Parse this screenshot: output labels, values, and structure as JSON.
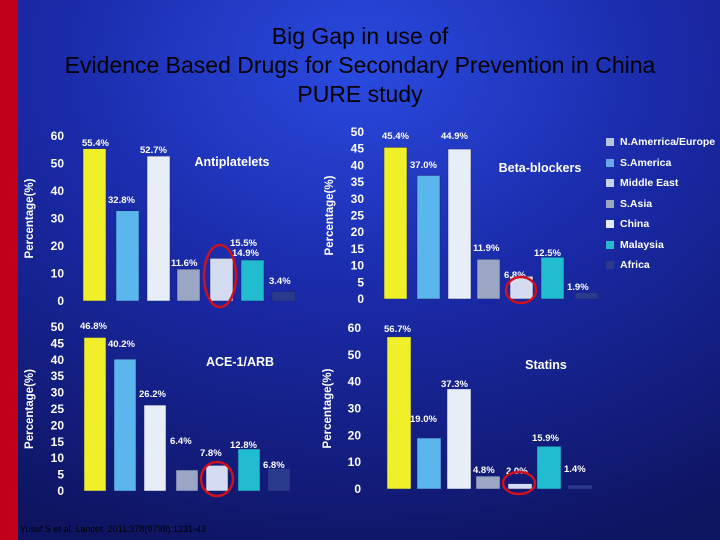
{
  "title": {
    "line1": "Big Gap in use of",
    "line2": "Evidence Based Drugs for Secondary Prevention in China",
    "line3": "PURE study"
  },
  "legend": [
    {
      "label": "N.Amerrica/Europe",
      "color": "#b8c4dc"
    },
    {
      "label": "S.America",
      "color": "#6aa6e8"
    },
    {
      "label": "Middle East",
      "color": "#c8d2ee"
    },
    {
      "label": "S.Asia",
      "color": "#9aa6c4"
    },
    {
      "label": "China",
      "color": "#e6ecf6"
    },
    {
      "label": "Malaysia",
      "color": "#2cb8cc"
    },
    {
      "label": "Africa",
      "color": "#2a3a8c"
    }
  ],
  "colors": {
    "background": "#11186a",
    "gradient_light": "#2a4ae0",
    "accent_bar": "#c0001a",
    "title_text": "#000000",
    "label_text": "#ffffff",
    "highlight_circle": "#d0101c",
    "bar_yellow": "#f0f02a",
    "bar_lightblue": "#5ab6ec",
    "bar_white": "#e8eef8",
    "bar_slate": "#9aa6c4",
    "bar_lavender": "#d4dcf2",
    "bar_cyan": "#22bcd0",
    "bar_navy": "#2a3a8c"
  },
  "chart_data": [
    {
      "type": "bar",
      "title": "Antiplatelets",
      "ylabel": "Percentage(%)",
      "ylim": [
        0,
        60
      ],
      "yticks": [
        "0",
        "10",
        "20",
        "30",
        "40",
        "50",
        "60"
      ],
      "categories": [
        "N.Amerrica/Europe",
        "S.America",
        "Middle East",
        "S.Asia",
        "China",
        "Malaysia",
        "Africa"
      ],
      "values": [
        55.4,
        32.8,
        52.7,
        11.6,
        15.5,
        14.9,
        3.4
      ],
      "data_labels": [
        "55.4%",
        "32.8%",
        "52.7%",
        "11.6%",
        "15.5%",
        "14.9%",
        "3.4%"
      ],
      "highlight_category": "China"
    },
    {
      "type": "bar",
      "title": "Beta-blockers",
      "ylabel": "Percentage(%)",
      "ylim": [
        0,
        50
      ],
      "yticks": [
        "0",
        "5",
        "10",
        "15",
        "20",
        "25",
        "30",
        "35",
        "40",
        "45",
        "50"
      ],
      "categories": [
        "N.Amerrica/Europe",
        "S.America",
        "Middle East",
        "S.Asia",
        "China",
        "Malaysia",
        "Africa"
      ],
      "values": [
        45.4,
        37.0,
        44.9,
        11.9,
        6.8,
        12.5,
        1.9
      ],
      "data_labels": [
        "45.4%",
        "37.0%",
        "44.9%",
        "11.9%",
        "6.8%",
        "12.5%",
        "1.9%"
      ],
      "highlight_category": "China"
    },
    {
      "type": "bar",
      "title": "ACE-1/ARB",
      "ylabel": "Percentage(%)",
      "ylim": [
        0,
        50
      ],
      "yticks": [
        "0",
        "5",
        "10",
        "15",
        "20",
        "25",
        "30",
        "35",
        "40",
        "45",
        "50"
      ],
      "categories": [
        "N.Amerrica/Europe",
        "S.America",
        "Middle East",
        "S.Asia",
        "China",
        "Malaysia",
        "Africa"
      ],
      "values": [
        46.8,
        40.2,
        26.2,
        6.4,
        7.8,
        12.8,
        6.8
      ],
      "data_labels": [
        "46.8%",
        "40.2%",
        "26.2%",
        "6.4%",
        "7.8%",
        "12.8%",
        "6.8%"
      ],
      "highlight_category": "China"
    },
    {
      "type": "bar",
      "title": "Statins",
      "ylabel": "Percentage(%)",
      "ylim": [
        0,
        60
      ],
      "yticks": [
        "0",
        "10",
        "20",
        "30",
        "40",
        "50",
        "60"
      ],
      "categories": [
        "N.Amerrica/Europe",
        "S.America",
        "Middle East",
        "S.Asia",
        "China",
        "Malaysia",
        "Africa"
      ],
      "values": [
        56.7,
        19.0,
        37.3,
        4.8,
        2.0,
        15.9,
        1.4
      ],
      "data_labels": [
        "56.7%",
        "19.0%",
        "37.3%",
        "4.8%",
        "2.0%",
        "15.9%",
        "1.4%"
      ],
      "highlight_category": "China"
    }
  ],
  "citation": "Yusuf S et al. Lancet. 2011;378(9798):1231-43"
}
